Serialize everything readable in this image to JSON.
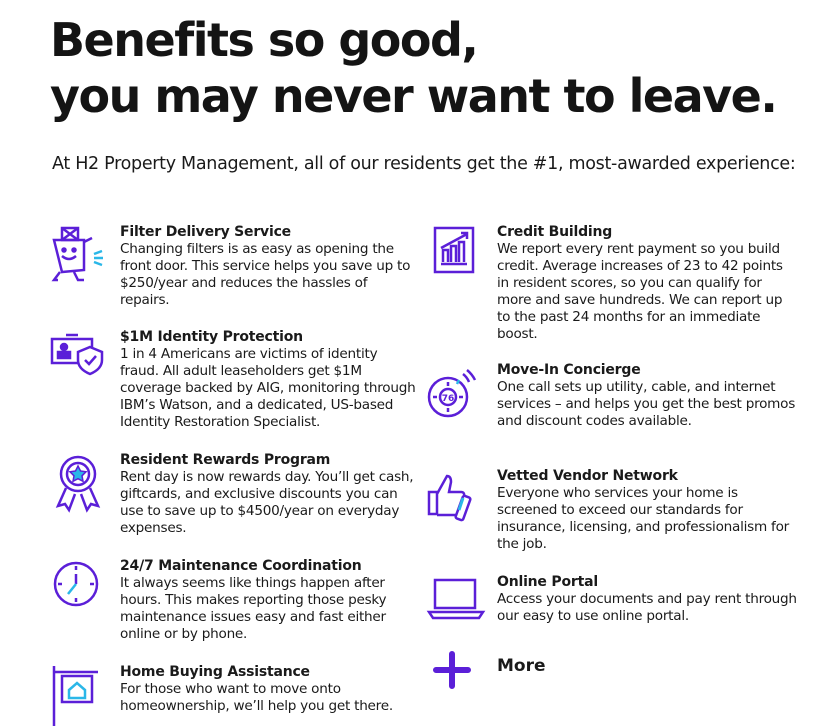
{
  "header": {
    "title_line1": "Benefits so good,",
    "title_line2": "you may never want to leave.",
    "subtitle": "At H2 Property Management, all of our residents get the #1, most-awarded experience:"
  },
  "colors": {
    "accent": "#5b1fd8",
    "highlight": "#2ab7e8"
  },
  "left": [
    {
      "icon": "filter-box-icon",
      "title": "Filter Delivery Service",
      "text": "Changing filters is as easy as opening the front door. This service helps you save up to $250/year and reduces the hassles of repairs."
    },
    {
      "icon": "identity-shield-icon",
      "title": "$1M Identity Protection",
      "text": "1 in 4 Americans are victims of identity fraud. All adult leaseholders get $1M coverage backed by AIG, monitoring through IBM’s Watson, and a dedicated, US-based Identity Restoration Specialist."
    },
    {
      "icon": "award-ribbon-icon",
      "title": "Resident Rewards Program",
      "text": "Rent day is now rewards day. You’ll get cash, giftcards, and exclusive discounts you can use to save up to $4500/year on everyday expenses."
    },
    {
      "icon": "clock-icon",
      "title": "24/7 Maintenance Coordination",
      "text": "It always seems like things happen after hours. This makes reporting those pesky maintenance issues easy and fast either online or by phone."
    },
    {
      "icon": "house-sign-icon",
      "title": "Home Buying Assistance",
      "text": "For those who want to move onto homeownership, we’ll help you get there."
    }
  ],
  "right": [
    {
      "icon": "credit-chart-icon",
      "title": "Credit Building",
      "text": "We report every rent payment so you build credit. Average increases of 23 to 42 points in resident scores, so you can qualify for more and save hundreds. We can report up to the past 24 months for an immediate boost."
    },
    {
      "icon": "thermostat-icon",
      "title": "Move-In Concierge",
      "text": "One call sets up utility, cable, and internet services – and helps you get the best promos and discount codes available.",
      "icon_text": "76"
    },
    {
      "icon": "thumbs-up-icon",
      "title": "Vetted Vendor Network",
      "text": "Everyone who services your home is screened to exceed our standards for insurance, licensing, and professionalism for the job."
    },
    {
      "icon": "laptop-icon",
      "title": "Online Portal",
      "text": "Access your documents and pay rent through our easy to use online portal."
    }
  ],
  "more": {
    "icon": "plus-icon",
    "label": "More"
  }
}
